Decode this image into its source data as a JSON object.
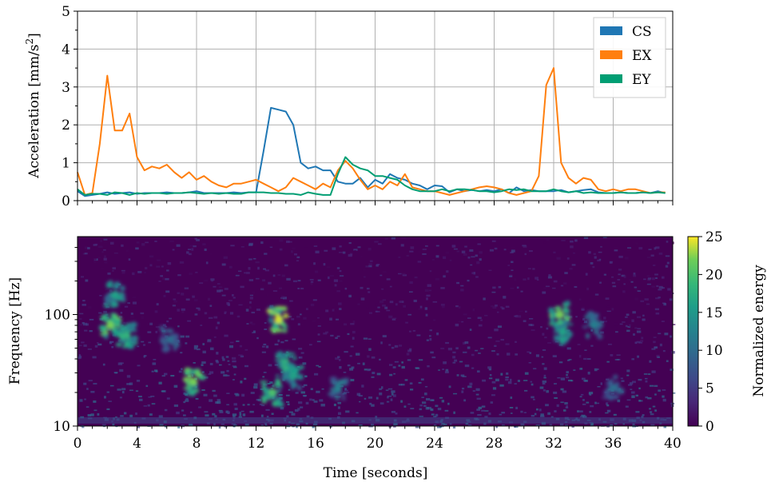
{
  "chart_data": [
    {
      "type": "line",
      "ylabel": "Acceleration [mm/s",
      "ylabel_superscript": "2",
      "ylabel_suffix": "]",
      "xlim": [
        0,
        40
      ],
      "ylim": [
        0,
        5
      ],
      "yticks": [
        "0",
        "1",
        "2",
        "3",
        "4",
        "5"
      ],
      "grid": true,
      "legend_position": "top-right",
      "legend": [
        "CS",
        "EX",
        "EY"
      ],
      "series": [
        {
          "name": "CS",
          "color": "#1f77b4",
          "x": [
            0,
            0.5,
            1,
            1.5,
            2,
            2.5,
            3,
            3.5,
            4,
            4.5,
            5,
            5.5,
            6,
            6.5,
            7,
            7.5,
            8,
            8.5,
            9,
            9.5,
            10,
            10.5,
            11,
            11.5,
            12,
            12.5,
            13,
            13.5,
            14,
            14.5,
            15,
            15.5,
            16,
            16.5,
            17,
            17.5,
            18,
            18.5,
            19,
            19.5,
            20,
            20.5,
            21,
            21.5,
            22,
            22.5,
            23,
            23.5,
            24,
            24.5,
            25,
            25.5,
            26,
            26.5,
            27,
            27.5,
            28,
            28.5,
            29,
            29.5,
            30,
            30.5,
            31,
            31.5,
            32,
            32.5,
            33,
            33.5,
            34,
            34.5,
            35,
            35.5,
            36,
            36.5,
            37,
            37.5,
            38,
            38.5,
            39,
            39.5
          ],
          "y": [
            0.25,
            0.12,
            0.15,
            0.18,
            0.22,
            0.18,
            0.2,
            0.22,
            0.18,
            0.2,
            0.2,
            0.2,
            0.22,
            0.2,
            0.2,
            0.22,
            0.25,
            0.2,
            0.2,
            0.2,
            0.2,
            0.22,
            0.2,
            0.22,
            0.22,
            1.3,
            2.45,
            2.4,
            2.35,
            2.0,
            1.0,
            0.85,
            0.9,
            0.8,
            0.8,
            0.5,
            0.45,
            0.45,
            0.6,
            0.35,
            0.55,
            0.45,
            0.7,
            0.6,
            0.55,
            0.45,
            0.4,
            0.3,
            0.4,
            0.38,
            0.22,
            0.3,
            0.25,
            0.28,
            0.25,
            0.28,
            0.25,
            0.3,
            0.2,
            0.35,
            0.25,
            0.28,
            0.25,
            0.25,
            0.25,
            0.28,
            0.22,
            0.25,
            0.28,
            0.3,
            0.22,
            0.2,
            0.2,
            0.22,
            0.2,
            0.2,
            0.22,
            0.2,
            0.25,
            0.2
          ]
        },
        {
          "name": "EX",
          "color": "#ff7f0e",
          "x": [
            0,
            0.5,
            1,
            1.5,
            2,
            2.5,
            3,
            3.5,
            4,
            4.5,
            5,
            5.5,
            6,
            6.5,
            7,
            7.5,
            8,
            8.5,
            9,
            9.5,
            10,
            10.5,
            11,
            11.5,
            12,
            12.5,
            13,
            13.5,
            14,
            14.5,
            15,
            15.5,
            16,
            16.5,
            17,
            17.5,
            18,
            18.5,
            19,
            19.5,
            20,
            20.5,
            21,
            21.5,
            22,
            22.5,
            23,
            23.5,
            24,
            24.5,
            25,
            25.5,
            26,
            26.5,
            27,
            27.5,
            28,
            28.5,
            29,
            29.5,
            30,
            30.5,
            31,
            31.5,
            32,
            32.5,
            33,
            33.5,
            34,
            34.5,
            35,
            35.5,
            36,
            36.5,
            37,
            37.5,
            38,
            38.5,
            39,
            39.5
          ],
          "y": [
            0.75,
            0.15,
            0.2,
            1.5,
            3.3,
            1.85,
            1.85,
            2.3,
            1.15,
            0.8,
            0.9,
            0.85,
            0.95,
            0.75,
            0.6,
            0.75,
            0.55,
            0.65,
            0.5,
            0.4,
            0.35,
            0.45,
            0.45,
            0.5,
            0.55,
            0.45,
            0.35,
            0.25,
            0.35,
            0.6,
            0.5,
            0.4,
            0.3,
            0.45,
            0.35,
            0.8,
            1.05,
            0.85,
            0.55,
            0.3,
            0.4,
            0.3,
            0.5,
            0.4,
            0.7,
            0.35,
            0.3,
            0.25,
            0.25,
            0.2,
            0.15,
            0.2,
            0.25,
            0.3,
            0.35,
            0.38,
            0.35,
            0.3,
            0.2,
            0.15,
            0.2,
            0.25,
            0.65,
            3.05,
            3.5,
            1.0,
            0.6,
            0.45,
            0.6,
            0.55,
            0.3,
            0.25,
            0.3,
            0.25,
            0.3,
            0.3,
            0.25,
            0.2,
            0.22,
            0.22
          ]
        },
        {
          "name": "EY",
          "color": "#009e73",
          "x": [
            0,
            0.5,
            1,
            1.5,
            2,
            2.5,
            3,
            3.5,
            4,
            4.5,
            5,
            5.5,
            6,
            6.5,
            7,
            7.5,
            8,
            8.5,
            9,
            9.5,
            10,
            10.5,
            11,
            11.5,
            12,
            12.5,
            13,
            13.5,
            14,
            14.5,
            15,
            15.5,
            16,
            16.5,
            17,
            17.5,
            18,
            18.5,
            19,
            19.5,
            20,
            20.5,
            21,
            21.5,
            22,
            22.5,
            23,
            23.5,
            24,
            24.5,
            25,
            25.5,
            26,
            26.5,
            27,
            27.5,
            28,
            28.5,
            29,
            29.5,
            30,
            30.5,
            31,
            31.5,
            32,
            32.5,
            33,
            33.5,
            34,
            34.5,
            35,
            35.5,
            36,
            36.5,
            37,
            37.5,
            38,
            38.5,
            39,
            39.5
          ],
          "y": [
            0.3,
            0.15,
            0.18,
            0.18,
            0.15,
            0.22,
            0.2,
            0.15,
            0.2,
            0.18,
            0.2,
            0.2,
            0.18,
            0.2,
            0.2,
            0.22,
            0.2,
            0.18,
            0.2,
            0.18,
            0.2,
            0.18,
            0.18,
            0.22,
            0.22,
            0.22,
            0.2,
            0.2,
            0.18,
            0.18,
            0.15,
            0.22,
            0.18,
            0.15,
            0.15,
            0.7,
            1.15,
            0.95,
            0.85,
            0.8,
            0.65,
            0.65,
            0.6,
            0.55,
            0.4,
            0.3,
            0.25,
            0.25,
            0.25,
            0.3,
            0.25,
            0.3,
            0.3,
            0.28,
            0.25,
            0.25,
            0.22,
            0.25,
            0.3,
            0.28,
            0.3,
            0.25,
            0.25,
            0.25,
            0.3,
            0.25,
            0.22,
            0.25,
            0.2,
            0.22,
            0.2,
            0.2,
            0.2,
            0.22,
            0.2,
            0.2,
            0.22,
            0.2,
            0.22,
            0.2
          ]
        }
      ]
    },
    {
      "type": "heatmap",
      "ylabel": "Frequency [Hz]",
      "xlabel": "Time [seconds]",
      "xlim": [
        0,
        40
      ],
      "ylim": [
        10,
        500
      ],
      "y_scale": "log",
      "xticks": [
        "0",
        "4",
        "8",
        "12",
        "16",
        "20",
        "24",
        "28",
        "32",
        "36",
        "40"
      ],
      "yticks": [
        "10",
        "100"
      ],
      "colorbar": {
        "label": "Normalized energy",
        "range": [
          0,
          25
        ],
        "ticks": [
          "0",
          "5",
          "10",
          "15",
          "20",
          "25"
        ],
        "colormap": "viridis"
      },
      "hotspots": [
        {
          "t": 2.2,
          "f": 80,
          "energy": 22
        },
        {
          "t": 3.3,
          "f": 65,
          "energy": 18
        },
        {
          "t": 2.5,
          "f": 150,
          "energy": 16
        },
        {
          "t": 6.2,
          "f": 60,
          "energy": 10
        },
        {
          "t": 7.8,
          "f": 25,
          "energy": 22
        },
        {
          "t": 13.1,
          "f": 20,
          "energy": 20
        },
        {
          "t": 13.5,
          "f": 90,
          "energy": 24
        },
        {
          "t": 14.0,
          "f": 35,
          "energy": 18
        },
        {
          "t": 14.5,
          "f": 28,
          "energy": 16
        },
        {
          "t": 17.5,
          "f": 22,
          "energy": 12
        },
        {
          "t": 32.4,
          "f": 100,
          "energy": 22
        },
        {
          "t": 32.6,
          "f": 70,
          "energy": 16
        },
        {
          "t": 34.7,
          "f": 80,
          "energy": 12
        },
        {
          "t": 36.0,
          "f": 22,
          "energy": 10
        }
      ]
    }
  ]
}
